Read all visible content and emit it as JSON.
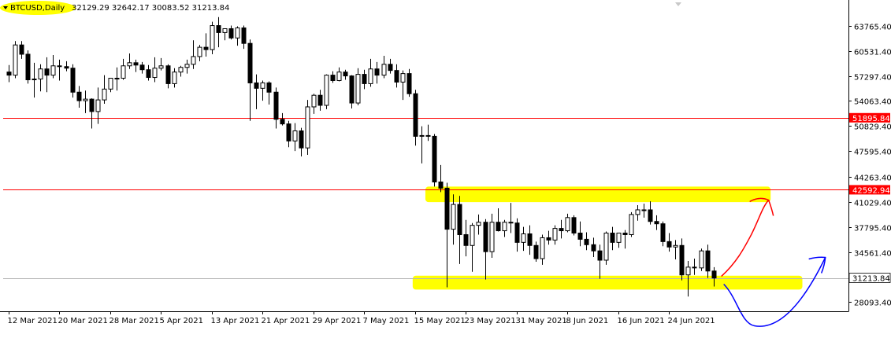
{
  "header": {
    "symbol": "BTCUSD,Daily",
    "ohlc": "32129.29 32642.17 30083.52 31213.84"
  },
  "colors": {
    "bull_candle": "#ffffff",
    "bear_candle": "#000000",
    "candle_outline": "#000000",
    "grid": "#c0c0c0",
    "resistance_line": "#ff0000",
    "support_line_marker": "#000000",
    "highlight": "#ffff00",
    "red_arrow": "#ff0000",
    "blue_arrow": "#0000ff"
  },
  "chart_data": {
    "type": "candlestick",
    "title": "BTCUSD,Daily",
    "ylim": [
      26900,
      66800
    ],
    "y_ticks": [
      {
        "value": 63765.4,
        "label": "63765.40"
      },
      {
        "value": 60531.4,
        "label": "60531.40"
      },
      {
        "value": 57297.4,
        "label": "57297.40"
      },
      {
        "value": 54063.4,
        "label": "54063.40"
      },
      {
        "value": 50829.4,
        "label": "50829.40"
      },
      {
        "value": 47595.4,
        "label": "47595.40"
      },
      {
        "value": 44263.4,
        "label": "44263.40"
      },
      {
        "value": 41029.4,
        "label": "41029.40"
      },
      {
        "value": 37795.4,
        "label": "37795.40"
      },
      {
        "value": 34561.4,
        "label": "34561.40"
      },
      {
        "value": 28093.4,
        "label": "28093.40"
      }
    ],
    "x_ticks": [
      {
        "index": 0,
        "label": "12 Mar 2021"
      },
      {
        "index": 8,
        "label": "20 Mar 2021"
      },
      {
        "index": 16,
        "label": "28 Mar 2021"
      },
      {
        "index": 24,
        "label": "5 Apr 2021"
      },
      {
        "index": 32,
        "label": "13 Apr 2021"
      },
      {
        "index": 40,
        "label": "21 Apr 2021"
      },
      {
        "index": 48,
        "label": "29 Apr 2021"
      },
      {
        "index": 56,
        "label": "7 May 2021"
      },
      {
        "index": 64,
        "label": "15 May 2021"
      },
      {
        "index": 72,
        "label": "23 May 2021"
      },
      {
        "index": 80,
        "label": "31 May 2021"
      },
      {
        "index": 88,
        "label": "8 Jun 2021"
      },
      {
        "index": 96,
        "label": "16 Jun 2021"
      },
      {
        "index": 104,
        "label": "24 Jun 2021"
      }
    ],
    "horizontal_lines": [
      {
        "value": 51895.84,
        "label": "51895.84",
        "type": "resistance"
      },
      {
        "value": 42592.94,
        "label": "42592.94",
        "type": "resistance"
      }
    ],
    "current_price": {
      "value": 31213.84,
      "label": "31213.84"
    },
    "highlight_zones": [
      {
        "start_index": 66,
        "end_index": 120,
        "low": 41000,
        "high": 43000
      },
      {
        "start_index": 64,
        "end_index": 125,
        "low": 29700,
        "high": 31500
      }
    ],
    "candles": [
      {
        "o": 57800,
        "h": 58700,
        "l": 56500,
        "c": 57400
      },
      {
        "o": 57400,
        "h": 61800,
        "l": 57000,
        "c": 61300
      },
      {
        "o": 61300,
        "h": 61800,
        "l": 59500,
        "c": 60100
      },
      {
        "o": 60100,
        "h": 60600,
        "l": 56300,
        "c": 56800
      },
      {
        "o": 56800,
        "h": 59000,
        "l": 54500,
        "c": 56900
      },
      {
        "o": 56900,
        "h": 58800,
        "l": 55300,
        "c": 58200
      },
      {
        "o": 58200,
        "h": 59700,
        "l": 55200,
        "c": 57400
      },
      {
        "o": 57400,
        "h": 60000,
        "l": 57000,
        "c": 58600
      },
      {
        "o": 58600,
        "h": 59400,
        "l": 56700,
        "c": 58500
      },
      {
        "o": 58500,
        "h": 59200,
        "l": 57900,
        "c": 58300
      },
      {
        "o": 58300,
        "h": 58800,
        "l": 54500,
        "c": 55200
      },
      {
        "o": 55200,
        "h": 56000,
        "l": 53200,
        "c": 54100
      },
      {
        "o": 54100,
        "h": 55400,
        "l": 52500,
        "c": 54300
      },
      {
        "o": 54300,
        "h": 54400,
        "l": 50500,
        "c": 52700
      },
      {
        "o": 52700,
        "h": 55800,
        "l": 51100,
        "c": 54200
      },
      {
        "o": 54200,
        "h": 57400,
        "l": 53700,
        "c": 55600
      },
      {
        "o": 55600,
        "h": 57000,
        "l": 55200,
        "c": 57000
      },
      {
        "o": 57000,
        "h": 58400,
        "l": 55400,
        "c": 57000
      },
      {
        "o": 57000,
        "h": 59500,
        "l": 56800,
        "c": 58600
      },
      {
        "o": 58600,
        "h": 60200,
        "l": 58200,
        "c": 59000
      },
      {
        "o": 59000,
        "h": 59400,
        "l": 57800,
        "c": 58700
      },
      {
        "o": 58700,
        "h": 59100,
        "l": 57600,
        "c": 58100
      },
      {
        "o": 58100,
        "h": 58700,
        "l": 56700,
        "c": 57100
      },
      {
        "o": 57100,
        "h": 59700,
        "l": 56500,
        "c": 58300
      },
      {
        "o": 58300,
        "h": 59600,
        "l": 58000,
        "c": 58600
      },
      {
        "o": 58600,
        "h": 58800,
        "l": 55700,
        "c": 56300
      },
      {
        "o": 56300,
        "h": 58300,
        "l": 55800,
        "c": 57800
      },
      {
        "o": 57800,
        "h": 58600,
        "l": 57200,
        "c": 58400
      },
      {
        "o": 58400,
        "h": 59400,
        "l": 57600,
        "c": 58800
      },
      {
        "o": 58800,
        "h": 61900,
        "l": 58200,
        "c": 59800
      },
      {
        "o": 59800,
        "h": 61300,
        "l": 59200,
        "c": 61000
      },
      {
        "o": 61000,
        "h": 62800,
        "l": 59800,
        "c": 60700
      },
      {
        "o": 60700,
        "h": 64300,
        "l": 60100,
        "c": 63800
      },
      {
        "o": 63800,
        "h": 64900,
        "l": 61000,
        "c": 62900
      },
      {
        "o": 62900,
        "h": 63400,
        "l": 61900,
        "c": 63400
      },
      {
        "o": 63400,
        "h": 63800,
        "l": 62000,
        "c": 62200
      },
      {
        "o": 62200,
        "h": 63700,
        "l": 61200,
        "c": 63500
      },
      {
        "o": 63500,
        "h": 63800,
        "l": 60800,
        "c": 61500
      },
      {
        "o": 61500,
        "h": 62000,
        "l": 51500,
        "c": 56400
      },
      {
        "o": 56400,
        "h": 57500,
        "l": 53000,
        "c": 55700
      },
      {
        "o": 55700,
        "h": 56700,
        "l": 54100,
        "c": 56400
      },
      {
        "o": 56400,
        "h": 56600,
        "l": 53600,
        "c": 55200
      },
      {
        "o": 55200,
        "h": 55800,
        "l": 50500,
        "c": 51700
      },
      {
        "o": 51700,
        "h": 52500,
        "l": 50900,
        "c": 51100
      },
      {
        "o": 51100,
        "h": 51500,
        "l": 48100,
        "c": 48900
      },
      {
        "o": 48900,
        "h": 51200,
        "l": 47600,
        "c": 50200
      },
      {
        "o": 50200,
        "h": 50600,
        "l": 46900,
        "c": 48000
      },
      {
        "o": 48000,
        "h": 54200,
        "l": 47100,
        "c": 53300
      },
      {
        "o": 53300,
        "h": 55000,
        "l": 52400,
        "c": 54800
      },
      {
        "o": 54800,
        "h": 55500,
        "l": 52800,
        "c": 53500
      },
      {
        "o": 53500,
        "h": 57500,
        "l": 53000,
        "c": 57400
      },
      {
        "o": 57400,
        "h": 57900,
        "l": 56400,
        "c": 56700
      },
      {
        "o": 56700,
        "h": 58400,
        "l": 56600,
        "c": 57800
      },
      {
        "o": 57800,
        "h": 58100,
        "l": 56800,
        "c": 57300
      },
      {
        "o": 57300,
        "h": 57400,
        "l": 53100,
        "c": 53800
      },
      {
        "o": 53800,
        "h": 58300,
        "l": 53500,
        "c": 57500
      },
      {
        "o": 57500,
        "h": 58100,
        "l": 55600,
        "c": 56300
      },
      {
        "o": 56300,
        "h": 59500,
        "l": 55900,
        "c": 58200
      },
      {
        "o": 58200,
        "h": 59100,
        "l": 56300,
        "c": 57400
      },
      {
        "o": 57400,
        "h": 59900,
        "l": 57000,
        "c": 58800
      },
      {
        "o": 58800,
        "h": 59500,
        "l": 57600,
        "c": 58000
      },
      {
        "o": 58000,
        "h": 58800,
        "l": 55800,
        "c": 56500
      },
      {
        "o": 56500,
        "h": 58000,
        "l": 54200,
        "c": 57600
      },
      {
        "o": 57600,
        "h": 58200,
        "l": 54600,
        "c": 55000
      },
      {
        "o": 55000,
        "h": 55500,
        "l": 48300,
        "c": 49500
      },
      {
        "o": 49500,
        "h": 50800,
        "l": 46000,
        "c": 49600
      },
      {
        "o": 49600,
        "h": 51000,
        "l": 48900,
        "c": 49500
      },
      {
        "o": 49500,
        "h": 49800,
        "l": 43000,
        "c": 43600
      },
      {
        "o": 43600,
        "h": 45800,
        "l": 42300,
        "c": 42800
      },
      {
        "o": 42800,
        "h": 43500,
        "l": 30000,
        "c": 37500
      },
      {
        "o": 37500,
        "h": 42000,
        "l": 35500,
        "c": 40700
      },
      {
        "o": 40700,
        "h": 41800,
        "l": 33000,
        "c": 36800
      },
      {
        "o": 36800,
        "h": 38700,
        "l": 34000,
        "c": 35400
      },
      {
        "o": 35400,
        "h": 38300,
        "l": 32000,
        "c": 38000
      },
      {
        "o": 38000,
        "h": 39400,
        "l": 36800,
        "c": 38400
      },
      {
        "o": 38400,
        "h": 38800,
        "l": 31000,
        "c": 34600
      },
      {
        "o": 34600,
        "h": 39500,
        "l": 33800,
        "c": 38400
      },
      {
        "o": 38400,
        "h": 40200,
        "l": 37200,
        "c": 37300
      },
      {
        "o": 37300,
        "h": 38700,
        "l": 36500,
        "c": 38400
      },
      {
        "o": 38400,
        "h": 40900,
        "l": 37000,
        "c": 38300
      },
      {
        "o": 38300,
        "h": 38900,
        "l": 34600,
        "c": 35800
      },
      {
        "o": 35800,
        "h": 37800,
        "l": 34700,
        "c": 36900
      },
      {
        "o": 36900,
        "h": 38000,
        "l": 34200,
        "c": 35400
      },
      {
        "o": 35400,
        "h": 35900,
        "l": 33300,
        "c": 33700
      },
      {
        "o": 33700,
        "h": 36800,
        "l": 32900,
        "c": 36400
      },
      {
        "o": 36400,
        "h": 37300,
        "l": 35500,
        "c": 36100
      },
      {
        "o": 36100,
        "h": 38000,
        "l": 35500,
        "c": 37600
      },
      {
        "o": 37600,
        "h": 38700,
        "l": 36300,
        "c": 37300
      },
      {
        "o": 37300,
        "h": 39500,
        "l": 37100,
        "c": 39000
      },
      {
        "o": 39000,
        "h": 39300,
        "l": 36700,
        "c": 37000
      },
      {
        "o": 37000,
        "h": 38500,
        "l": 35300,
        "c": 36200
      },
      {
        "o": 36200,
        "h": 37100,
        "l": 34800,
        "c": 35500
      },
      {
        "o": 35500,
        "h": 36400,
        "l": 33900,
        "c": 34700
      },
      {
        "o": 34700,
        "h": 35500,
        "l": 31100,
        "c": 33500
      },
      {
        "o": 33500,
        "h": 37200,
        "l": 32900,
        "c": 37000
      },
      {
        "o": 37000,
        "h": 37800,
        "l": 34800,
        "c": 35800
      },
      {
        "o": 35800,
        "h": 37000,
        "l": 35100,
        "c": 37000
      },
      {
        "o": 37000,
        "h": 37400,
        "l": 35000,
        "c": 36800
      },
      {
        "o": 36800,
        "h": 39700,
        "l": 36500,
        "c": 39400
      },
      {
        "o": 39400,
        "h": 40600,
        "l": 38600,
        "c": 40000
      },
      {
        "o": 40000,
        "h": 40800,
        "l": 39000,
        "c": 40000
      },
      {
        "o": 40000,
        "h": 41100,
        "l": 38100,
        "c": 38500
      },
      {
        "o": 38500,
        "h": 39300,
        "l": 37400,
        "c": 38200
      },
      {
        "o": 38200,
        "h": 38500,
        "l": 35300,
        "c": 35900
      },
      {
        "o": 35900,
        "h": 37000,
        "l": 34600,
        "c": 35200
      },
      {
        "o": 35200,
        "h": 36100,
        "l": 33600,
        "c": 35400
      },
      {
        "o": 35400,
        "h": 36300,
        "l": 30900,
        "c": 31600
      },
      {
        "o": 31600,
        "h": 33400,
        "l": 28800,
        "c": 32600
      },
      {
        "o": 32600,
        "h": 33700,
        "l": 31600,
        "c": 32500
      },
      {
        "o": 32500,
        "h": 35000,
        "l": 32100,
        "c": 34700
      },
      {
        "o": 34700,
        "h": 35500,
        "l": 31200,
        "c": 32100
      },
      {
        "o": 32100,
        "h": 32600,
        "l": 30100,
        "c": 31200
      }
    ]
  }
}
